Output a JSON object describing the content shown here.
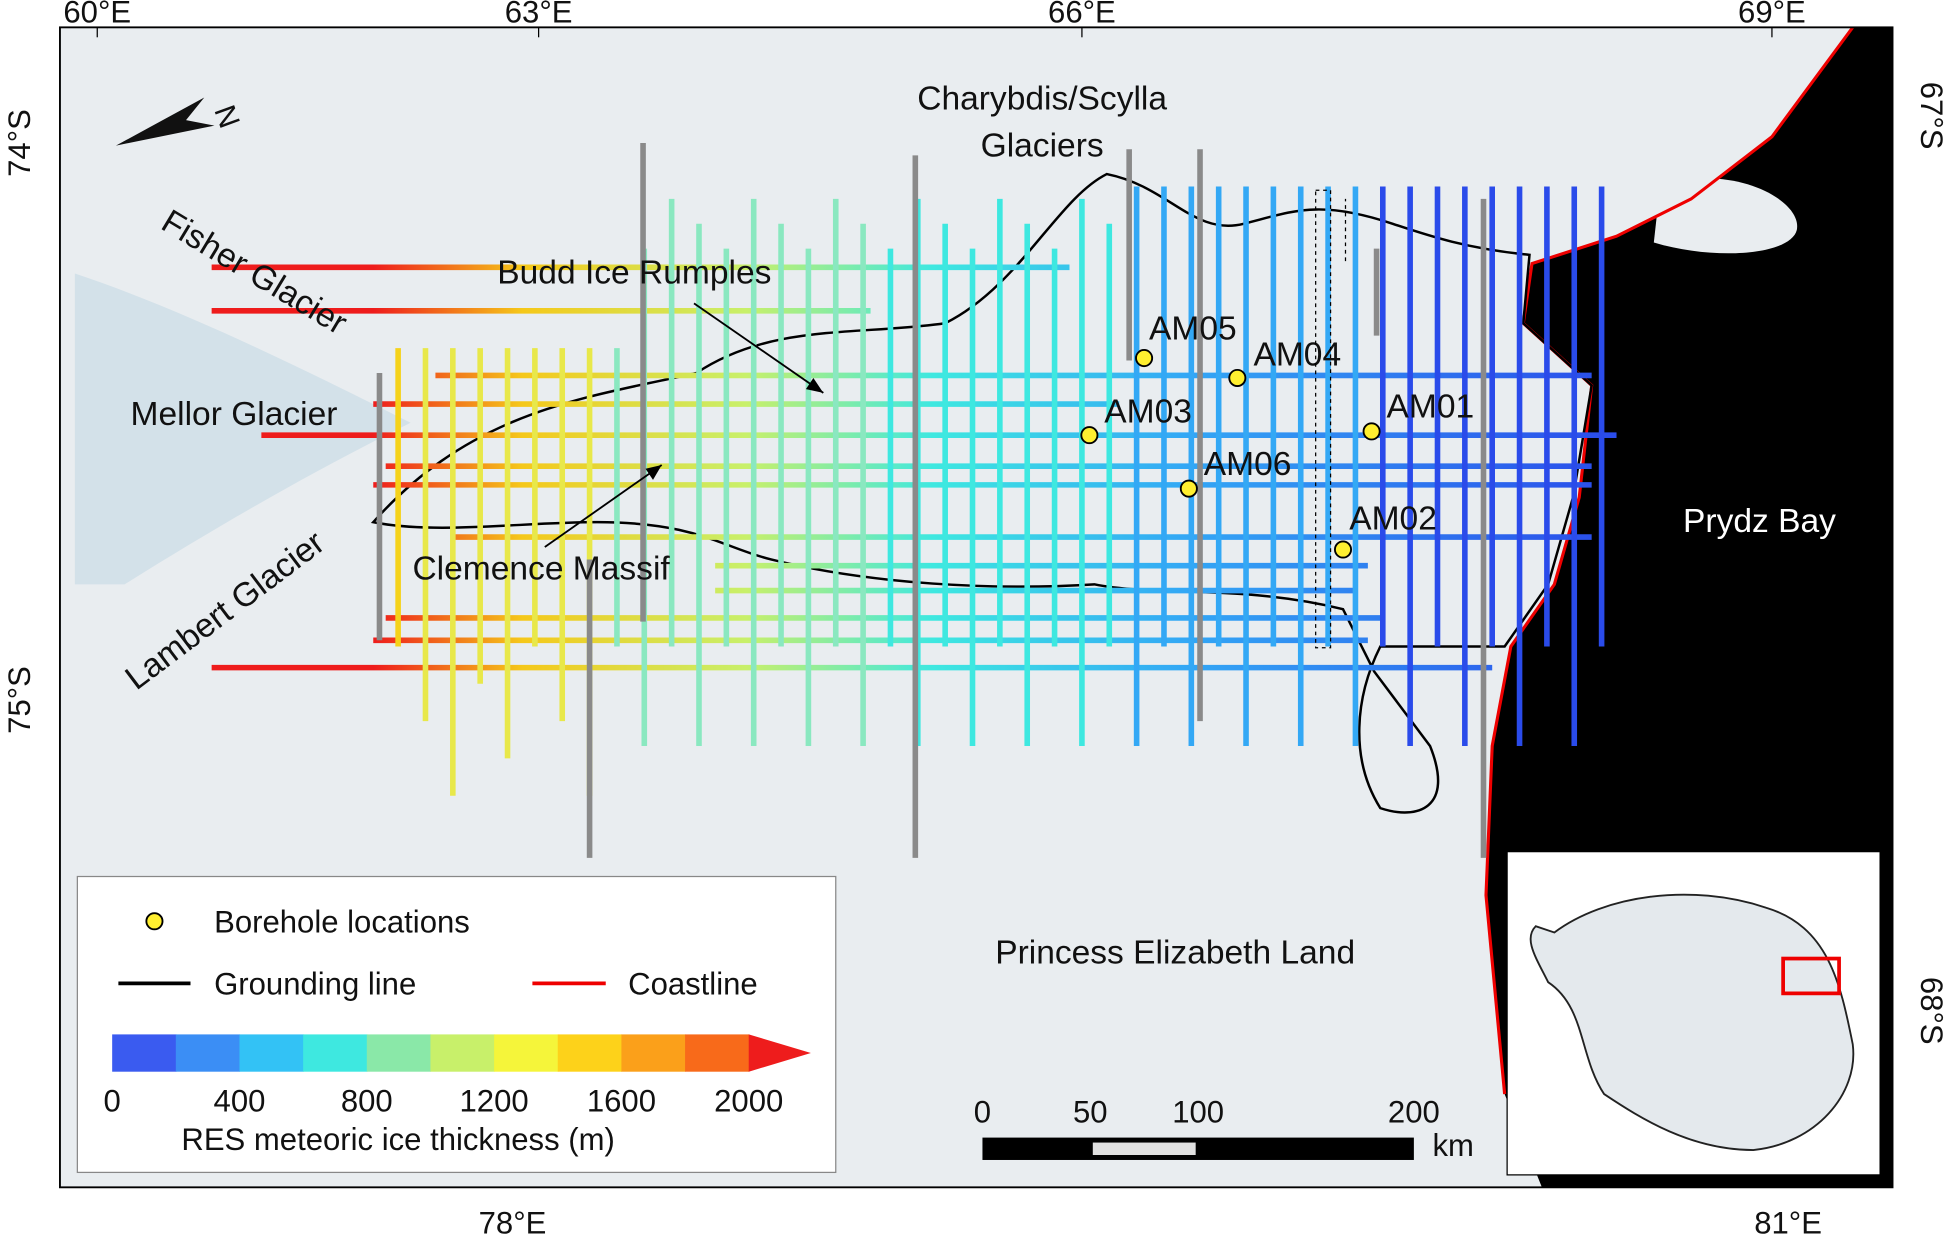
{
  "map": {
    "graticule": {
      "top": [
        "60°E",
        "63°E",
        "66°E",
        "69°E"
      ],
      "bottom": [
        "78°E",
        "81°E"
      ],
      "left": [
        "74°S",
        "75°S"
      ],
      "right": [
        "67°S",
        "68°S"
      ]
    },
    "north": "N",
    "places": {
      "charybdis_1": "Charybdis/Scylla",
      "charybdis_2": "Glaciers",
      "fisher": "Fisher Glacier",
      "budd": "Budd Ice Rumples",
      "mellor": "Mellor Glacier",
      "lambert": "Lambert Glacier",
      "clemence": "Clemence Massif",
      "prydz": "Prydz Bay",
      "princess": "Princess Elizabeth Land"
    },
    "boreholes": [
      "AM05",
      "AM04",
      "AM03",
      "AM01",
      "AM06",
      "AM02"
    ],
    "legend": {
      "boreholes": "Borehole locations",
      "grounding_line": "Grounding line",
      "coastline": "Coastline"
    },
    "colorbar": {
      "title": "RES meteoric ice thickness (m)",
      "range": [
        0,
        2000
      ],
      "ticks": [
        0,
        400,
        800,
        1200,
        1600,
        2000
      ],
      "colors": [
        "#3a5bf0",
        "#3b8ef5",
        "#33c2f5",
        "#3ee8e0",
        "#8ae8a8",
        "#c8f06a",
        "#f5f53a",
        "#fdd21a",
        "#fba01a",
        "#f86a1a",
        "#ee1c1c"
      ]
    },
    "scale_bar": {
      "range": [
        0,
        200
      ],
      "ticks": [
        0,
        50,
        100,
        200
      ],
      "unit": "km"
    }
  }
}
